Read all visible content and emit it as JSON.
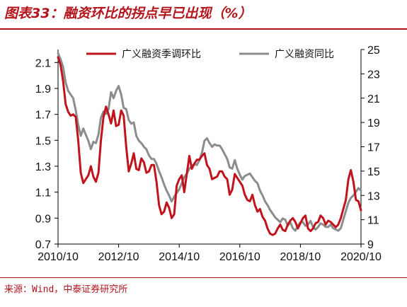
{
  "header": {
    "title": "图表33：融资环比的拐点早已出现（%）"
  },
  "footer": {
    "source": "来源：Wind，中泰证券研究所"
  },
  "colors": {
    "qoq": "#c0131b",
    "yoy": "#8c8c8c",
    "brand": "#b3141b"
  },
  "chart_data": {
    "type": "line",
    "legend_position": "top",
    "grid": false,
    "x_ticks": [
      "2010/10",
      "2012/10",
      "2014/10",
      "2016/10",
      "2018/10",
      "2020/10"
    ],
    "x_range": [
      "2010/10",
      "2020/10"
    ],
    "y_left": {
      "ticks": [
        "0.7",
        "0.9",
        "1.1",
        "1.3",
        "1.5",
        "1.7",
        "1.9",
        "2.1"
      ],
      "ylim": [
        0.7,
        2.2
      ]
    },
    "y_right": {
      "ticks": [
        "9",
        "11",
        "13",
        "15",
        "17",
        "19",
        "21",
        "23",
        "25"
      ],
      "ylim": [
        9,
        25
      ]
    },
    "series": [
      {
        "name": "广义融资季调环比",
        "axis": "left",
        "color": "#c0131b",
        "x": [
          "2010/10",
          "2010/11",
          "2010/12",
          "2011/01",
          "2011/02",
          "2011/03",
          "2011/04",
          "2011/05",
          "2011/06",
          "2011/07",
          "2011/08",
          "2011/09",
          "2011/10",
          "2011/11",
          "2011/12",
          "2012/01",
          "2012/02",
          "2012/03",
          "2012/04",
          "2012/05",
          "2012/06",
          "2012/07",
          "2012/08",
          "2012/09",
          "2012/10",
          "2012/11",
          "2012/12",
          "2013/01",
          "2013/02",
          "2013/03",
          "2013/04",
          "2013/05",
          "2013/06",
          "2013/07",
          "2013/08",
          "2013/09",
          "2013/10",
          "2013/11",
          "2013/12",
          "2014/01",
          "2014/02",
          "2014/03",
          "2014/04",
          "2014/05",
          "2014/06",
          "2014/07",
          "2014/08",
          "2014/09",
          "2014/10",
          "2014/11",
          "2014/12",
          "2015/01",
          "2015/02",
          "2015/03",
          "2015/04",
          "2015/05",
          "2015/06",
          "2015/07",
          "2015/08",
          "2015/09",
          "2015/10",
          "2015/11",
          "2015/12",
          "2016/01",
          "2016/02",
          "2016/03",
          "2016/04",
          "2016/05",
          "2016/06",
          "2016/07",
          "2016/08",
          "2016/09",
          "2016/10",
          "2016/11",
          "2016/12",
          "2017/01",
          "2017/02",
          "2017/03",
          "2017/04",
          "2017/05",
          "2017/06",
          "2017/07",
          "2017/08",
          "2017/09",
          "2017/10",
          "2017/11",
          "2017/12",
          "2018/01",
          "2018/02",
          "2018/03",
          "2018/04",
          "2018/05",
          "2018/06",
          "2018/07",
          "2018/08",
          "2018/09",
          "2018/10",
          "2018/11",
          "2018/12",
          "2019/01",
          "2019/02",
          "2019/03",
          "2019/04",
          "2019/05",
          "2019/06",
          "2019/07",
          "2019/08",
          "2019/09",
          "2019/10",
          "2019/11",
          "2019/12",
          "2020/01",
          "2020/02",
          "2020/03",
          "2020/04",
          "2020/05",
          "2020/06",
          "2020/07",
          "2020/08",
          "2020/09",
          "2020/10"
        ],
        "values": [
          2.14,
          2.08,
          1.96,
          1.78,
          1.72,
          1.69,
          1.7,
          1.68,
          1.5,
          1.25,
          1.17,
          1.2,
          1.23,
          1.3,
          1.22,
          1.18,
          1.25,
          1.5,
          1.68,
          1.76,
          1.7,
          1.63,
          1.73,
          1.61,
          1.62,
          1.73,
          1.69,
          1.45,
          1.26,
          1.32,
          1.4,
          1.28,
          1.27,
          1.36,
          1.33,
          1.25,
          1.26,
          1.31,
          1.31,
          1.18,
          1.0,
          0.93,
          0.95,
          1.02,
          0.98,
          0.9,
          0.93,
          1.15,
          1.2,
          1.23,
          1.1,
          1.24,
          1.38,
          1.28,
          1.32,
          1.35,
          1.35,
          1.38,
          1.4,
          1.31,
          1.28,
          1.2,
          1.21,
          1.22,
          1.26,
          1.26,
          1.22,
          1.2,
          1.08,
          1.12,
          1.24,
          1.21,
          1.18,
          1.15,
          1.08,
          1.04,
          1.03,
          1.08,
          1.0,
          0.95,
          0.97,
          0.91,
          0.88,
          0.82,
          0.78,
          0.77,
          0.78,
          0.82,
          0.85,
          0.81,
          0.8,
          0.85,
          0.88,
          0.9,
          0.87,
          0.82,
          0.86,
          0.9,
          0.92,
          0.82,
          0.8,
          0.82,
          0.86,
          0.87,
          0.92,
          0.9,
          0.85,
          0.88,
          0.87,
          0.85,
          0.83,
          0.85,
          0.9,
          0.97,
          1.04,
          1.2,
          1.27,
          1.18,
          1.04,
          1.03,
          0.96
        ]
      },
      {
        "name": "广义融资同比",
        "axis": "right",
        "color": "#8c8c8c",
        "x": [
          "2010/10",
          "2010/11",
          "2010/12",
          "2011/01",
          "2011/02",
          "2011/03",
          "2011/04",
          "2011/05",
          "2011/06",
          "2011/07",
          "2011/08",
          "2011/09",
          "2011/10",
          "2011/11",
          "2011/12",
          "2012/01",
          "2012/02",
          "2012/03",
          "2012/04",
          "2012/05",
          "2012/06",
          "2012/07",
          "2012/08",
          "2012/09",
          "2012/10",
          "2012/11",
          "2012/12",
          "2013/01",
          "2013/02",
          "2013/03",
          "2013/04",
          "2013/05",
          "2013/06",
          "2013/07",
          "2013/08",
          "2013/09",
          "2013/10",
          "2013/11",
          "2013/12",
          "2014/01",
          "2014/02",
          "2014/03",
          "2014/04",
          "2014/05",
          "2014/06",
          "2014/07",
          "2014/08",
          "2014/09",
          "2014/10",
          "2014/11",
          "2014/12",
          "2015/01",
          "2015/02",
          "2015/03",
          "2015/04",
          "2015/05",
          "2015/06",
          "2015/07",
          "2015/08",
          "2015/09",
          "2015/10",
          "2015/11",
          "2015/12",
          "2016/01",
          "2016/02",
          "2016/03",
          "2016/04",
          "2016/05",
          "2016/06",
          "2016/07",
          "2016/08",
          "2016/09",
          "2016/10",
          "2016/11",
          "2016/12",
          "2017/01",
          "2017/02",
          "2017/03",
          "2017/04",
          "2017/05",
          "2017/06",
          "2017/07",
          "2017/08",
          "2017/09",
          "2017/10",
          "2017/11",
          "2017/12",
          "2018/01",
          "2018/02",
          "2018/03",
          "2018/04",
          "2018/05",
          "2018/06",
          "2018/07",
          "2018/08",
          "2018/09",
          "2018/10",
          "2018/11",
          "2018/12",
          "2019/01",
          "2019/02",
          "2019/03",
          "2019/04",
          "2019/05",
          "2019/06",
          "2019/07",
          "2019/08",
          "2019/09",
          "2019/10",
          "2019/11",
          "2019/12",
          "2020/01",
          "2020/02",
          "2020/03",
          "2020/04",
          "2020/05",
          "2020/06",
          "2020/07",
          "2020/08",
          "2020/09",
          "2020/10"
        ],
        "values": [
          24.7,
          24.2,
          23.6,
          22.3,
          21.6,
          21.3,
          21.0,
          20.0,
          18.8,
          17.9,
          18.5,
          18.0,
          17.5,
          16.8,
          17.4,
          17.3,
          18.0,
          19.4,
          19.9,
          19.7,
          20.1,
          21.5,
          21.0,
          21.6,
          22.0,
          21.3,
          20.2,
          20.1,
          19.2,
          18.9,
          19.0,
          17.9,
          17.5,
          17.3,
          17.0,
          16.8,
          16.3,
          16.0,
          16.0,
          15.6,
          15.0,
          14.5,
          13.9,
          13.4,
          13.0,
          12.5,
          12.9,
          13.2,
          13.5,
          14.0,
          14.5,
          14.8,
          15.2,
          15.4,
          15.6,
          15.5,
          15.9,
          16.5,
          17.5,
          17.7,
          17.3,
          17.0,
          17.2,
          17.1,
          17.1,
          16.8,
          16.4,
          16.0,
          15.3,
          15.2,
          15.9,
          15.2,
          14.7,
          14.3,
          14.6,
          14.7,
          14.8,
          14.5,
          14.2,
          14.0,
          13.4,
          13.0,
          12.5,
          12.2,
          11.8,
          11.5,
          11.2,
          11.0,
          10.8,
          11.1,
          11.0,
          10.5,
          10.8,
          10.3,
          10.1,
          10.5,
          10.8,
          10.8,
          10.5,
          10.6,
          10.9,
          10.4,
          10.2,
          10.4,
          10.7,
          10.6,
          10.4,
          10.4,
          10.6,
          10.3,
          10.2,
          10.1,
          10.3,
          11.0,
          11.7,
          12.4,
          12.8,
          13.0,
          13.3,
          13.6,
          13.4
        ]
      }
    ]
  }
}
